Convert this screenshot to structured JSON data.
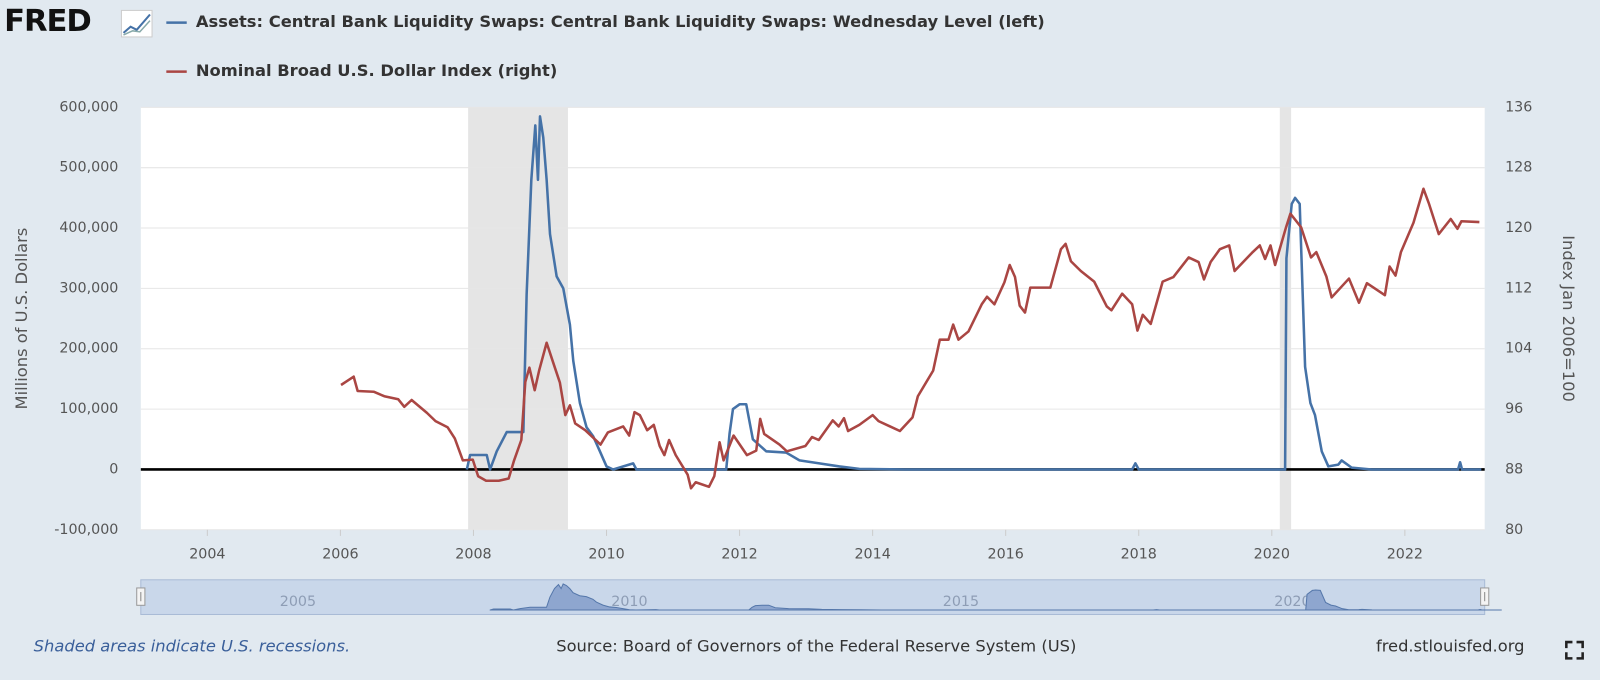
{
  "logo": "FRED",
  "chart_data": {
    "type": "line",
    "y_label": "Millions of U.S. Dollars",
    "y2_label": "Index Jan 2006=100",
    "xlim": [
      2003,
      2023.2
    ],
    "xticks": [
      2004,
      2006,
      2008,
      2010,
      2012,
      2014,
      2016,
      2018,
      2020,
      2022
    ],
    "ylim": [
      -100000,
      600000
    ],
    "yticks": [
      {
        "value": -100000,
        "label": "-100,000"
      },
      0,
      {
        "value": 100000,
        "label": "100,000"
      },
      {
        "value": 200000,
        "label": "200,000"
      },
      {
        "value": 300000,
        "label": "300,000"
      },
      {
        "value": 400000,
        "label": "400,000"
      },
      {
        "value": 500000,
        "label": "500,000"
      },
      {
        "value": 600000,
        "label": "600,000"
      }
    ],
    "y2lim": [
      80,
      136
    ],
    "y2ticks": [
      80,
      88,
      96,
      104,
      112,
      120,
      128,
      136
    ],
    "grid": true,
    "legend": "top-left",
    "recessions": [
      [
        2007.92,
        2009.42
      ],
      [
        2020.12,
        2020.29
      ]
    ],
    "series": [
      {
        "name": "Assets: Central Bank Liquidity Swaps: Central Bank Liquidity Swaps: Wednesday Level (left)",
        "color": "#4572a7",
        "axis": "y",
        "x": [
          2007.9,
          2007.95,
          2008.2,
          2008.25,
          2008.35,
          2008.5,
          2008.75,
          2008.8,
          2008.87,
          2008.93,
          2008.97,
          2009.0,
          2009.05,
          2009.1,
          2009.15,
          2009.25,
          2009.35,
          2009.45,
          2009.5,
          2009.6,
          2009.7,
          2009.8,
          2009.9,
          2010.0,
          2010.1,
          2010.4,
          2010.45,
          2011.8,
          2011.85,
          2011.9,
          2012.0,
          2012.1,
          2012.2,
          2012.4,
          2012.7,
          2012.9,
          2013.2,
          2013.5,
          2013.8,
          2014.5,
          2017.9,
          2017.95,
          2018.0,
          2020.2,
          2020.22,
          2020.3,
          2020.35,
          2020.42,
          2020.5,
          2020.58,
          2020.65,
          2020.75,
          2020.85,
          2021.0,
          2021.05,
          2021.2,
          2021.5,
          2022.8,
          2022.83,
          2022.86,
          2023.15
        ],
        "values": [
          0,
          24000,
          24000,
          0,
          30000,
          62000,
          62000,
          290000,
          480000,
          570000,
          480000,
          585000,
          550000,
          480000,
          390000,
          320000,
          300000,
          240000,
          180000,
          110000,
          70000,
          55000,
          30000,
          5000,
          0,
          10000,
          0,
          0,
          60000,
          100000,
          108000,
          108000,
          50000,
          30000,
          28000,
          15000,
          10000,
          5000,
          1000,
          0,
          0,
          10000,
          0,
          0,
          350000,
          440000,
          450000,
          440000,
          170000,
          110000,
          90000,
          30000,
          5000,
          8000,
          15000,
          3000,
          0,
          0,
          12000,
          0,
          0
        ]
      },
      {
        "name": "Nominal Broad U.S. Dollar Index (right)",
        "color": "#aa4643",
        "axis": "y2",
        "x": [
          2006.01,
          2006.2,
          2006.26,
          2006.5,
          2006.66,
          2006.87,
          2006.96,
          2007.07,
          2007.3,
          2007.43,
          2007.61,
          2007.72,
          2007.84,
          2007.99,
          2008.07,
          2008.19,
          2008.38,
          2008.53,
          2008.61,
          2008.72,
          2008.78,
          2008.84,
          2008.92,
          2008.99,
          2009.1,
          2009.22,
          2009.3,
          2009.38,
          2009.45,
          2009.53,
          2009.68,
          2009.91,
          2010.02,
          2010.25,
          2010.34,
          2010.42,
          2010.5,
          2010.61,
          2010.71,
          2010.8,
          2010.87,
          2010.94,
          2011.04,
          2011.22,
          2011.27,
          2011.34,
          2011.54,
          2011.62,
          2011.7,
          2011.76,
          2011.91,
          2012.11,
          2012.25,
          2012.31,
          2012.37,
          2012.6,
          2012.71,
          2012.99,
          2013.09,
          2013.19,
          2013.4,
          2013.49,
          2013.57,
          2013.63,
          2013.8,
          2014.0,
          2014.09,
          2014.41,
          2014.6,
          2014.68,
          2014.91,
          2015.01,
          2015.14,
          2015.21,
          2015.29,
          2015.44,
          2015.64,
          2015.72,
          2015.83,
          2015.98,
          2016.06,
          2016.14,
          2016.21,
          2016.29,
          2016.37,
          2016.67,
          2016.83,
          2016.9,
          2016.98,
          2017.13,
          2017.33,
          2017.52,
          2017.59,
          2017.75,
          2017.9,
          2017.98,
          2018.06,
          2018.18,
          2018.36,
          2018.52,
          2018.75,
          2018.9,
          2018.98,
          2019.08,
          2019.22,
          2019.36,
          2019.44,
          2019.7,
          2019.82,
          2019.9,
          2019.98,
          2020.05,
          2020.21,
          2020.28,
          2020.44,
          2020.59,
          2020.67,
          2020.82,
          2020.9,
          2021.16,
          2021.31,
          2021.43,
          2021.7,
          2021.77,
          2021.86,
          2021.94,
          2022.13,
          2022.28,
          2022.36,
          2022.51,
          2022.69,
          2022.79,
          2022.85,
          2023.12
        ],
        "values": [
          99.2,
          100.3,
          98.4,
          98.3,
          97.7,
          97.3,
          96.3,
          97.2,
          95.5,
          94.4,
          93.6,
          92.1,
          89.2,
          89.3,
          87.1,
          86.5,
          86.5,
          86.8,
          89.2,
          91.9,
          99.6,
          101.5,
          98.5,
          101.2,
          104.8,
          101.6,
          99.5,
          95.2,
          96.5,
          94.1,
          93.2,
          91.3,
          92.9,
          93.7,
          92.5,
          95.6,
          95.2,
          93.2,
          93.9,
          91.1,
          89.9,
          91.9,
          89.9,
          87.3,
          85.5,
          86.3,
          85.7,
          87.1,
          91.6,
          89.2,
          92.5,
          89.9,
          90.5,
          94.7,
          92.7,
          91.3,
          90.4,
          91.1,
          92.3,
          91.9,
          94.5,
          93.7,
          94.8,
          93.1,
          93.9,
          95.2,
          94.4,
          93.1,
          94.9,
          97.7,
          101.1,
          105.2,
          105.2,
          107.2,
          105.2,
          106.3,
          109.9,
          110.9,
          109.9,
          112.8,
          115.1,
          113.5,
          109.7,
          108.8,
          112.1,
          112.1,
          117.2,
          117.9,
          115.6,
          114.3,
          112.9,
          109.6,
          109.1,
          111.3,
          109.9,
          106.4,
          108.5,
          107.3,
          112.9,
          113.5,
          116.1,
          115.5,
          113.2,
          115.5,
          117.2,
          117.7,
          114.3,
          116.7,
          117.7,
          115.9,
          117.7,
          115.1,
          120.0,
          121.9,
          120.1,
          116.1,
          116.8,
          113.6,
          110.8,
          113.3,
          110.1,
          112.7,
          111.1,
          114.9,
          113.7,
          116.8,
          120.7,
          125.2,
          123.3,
          119.2,
          121.2,
          119.9,
          120.9,
          120.8
        ]
      }
    ],
    "navigator": {
      "xlim": [
        2002.63,
        2022.9
      ],
      "xticks": [
        2005,
        2010,
        2015,
        2020
      ]
    },
    "note": "Shaded areas indicate U.S. recessions.",
    "source": "Source: Board of Governors of the Federal Reserve System (US)",
    "site": "fred.stlouisfed.org"
  }
}
